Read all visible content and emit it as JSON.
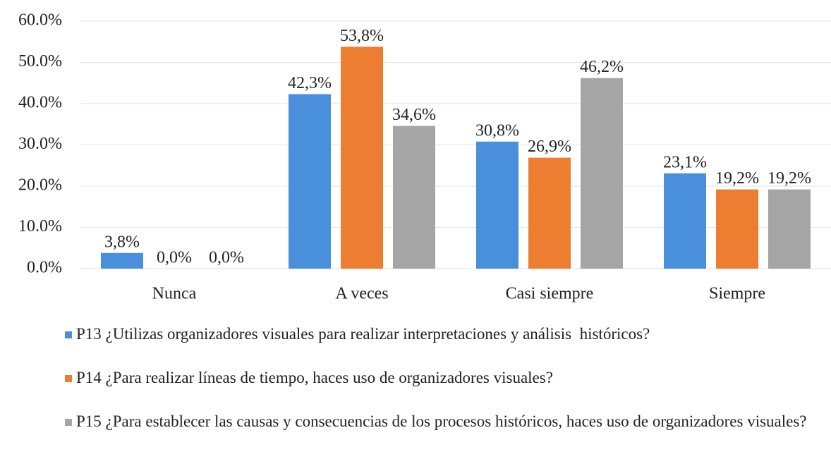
{
  "chart_data": {
    "type": "bar",
    "categories": [
      "Nunca",
      "A veces",
      "Casi siempre",
      "Siempre"
    ],
    "series": [
      {
        "name": "P13 ¿Utilizas organizadores visuales para realizar interpretaciones y análisis  históricos?",
        "color": "#4a8fdb",
        "values": [
          3.8,
          42.3,
          30.8,
          23.1
        ],
        "value_labels": [
          "3,8%",
          "42,3%",
          "30,8%",
          "23,1%"
        ]
      },
      {
        "name": "P14 ¿Para realizar líneas de tiempo, haces uso de organizadores visuales?",
        "color": "#ed7d31",
        "values": [
          0,
          53.8,
          26.9,
          19.2
        ],
        "value_labels": [
          "0,0%",
          "53,8%",
          "26,9%",
          "19,2%"
        ]
      },
      {
        "name": "P15 ¿Para establecer las causas y consecuencias de los procesos históricos, haces uso de organizadores visuales?",
        "color": "#a5a5a5",
        "values": [
          0,
          34.6,
          46.2,
          19.2
        ],
        "value_labels": [
          "0,0%",
          "34,6%",
          "46,2%",
          "19,2%"
        ]
      }
    ],
    "ylim": [
      0,
      60
    ],
    "yticks": [
      {
        "value": 0,
        "label": "0.0%"
      },
      {
        "value": 10,
        "label": "10.0%"
      },
      {
        "value": 20,
        "label": "20.0%"
      },
      {
        "value": 30,
        "label": "30.0%"
      },
      {
        "value": 40,
        "label": "40.0%"
      },
      {
        "value": 50,
        "label": "50.0%"
      },
      {
        "value": 60,
        "label": "60.0%"
      }
    ],
    "grid": true,
    "legend": "bottom"
  }
}
